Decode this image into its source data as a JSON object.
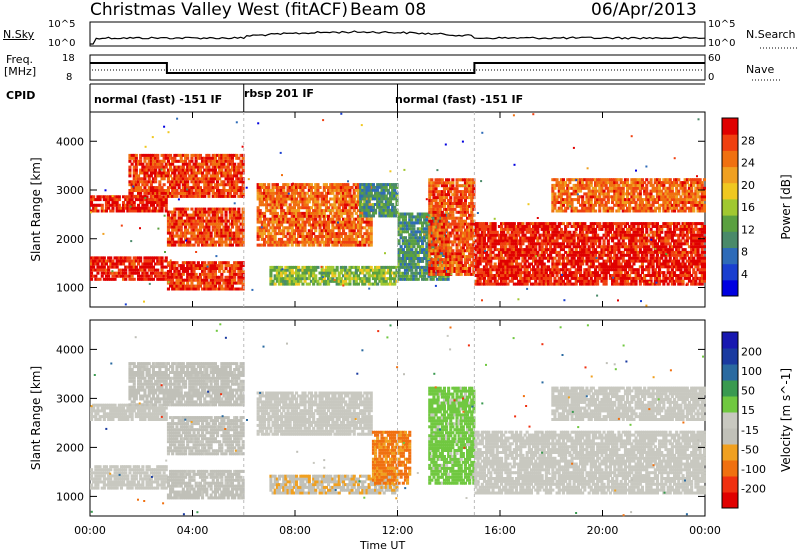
{
  "header": {
    "station": "Christmas Valley West (fitACF)",
    "beam": "Beam 08",
    "date": "06/Apr/2013"
  },
  "noise_panel": {
    "ylabel": "N.Sky",
    "left_ticks": [
      "10^5",
      "10^0"
    ],
    "right_ticks": [
      "10^5",
      "10^0"
    ],
    "right_label": "N.Search"
  },
  "freq_panel": {
    "ylabel_line1": "Freq.",
    "ylabel_line2": "[MHz]",
    "left_ticks": [
      "18",
      "8"
    ],
    "right_ticks": [
      "60",
      "0"
    ],
    "right_label": "Nave"
  },
  "cpid_panel": {
    "label": "CPID",
    "segments": [
      {
        "text": "normal (fast) -151 IF",
        "start_hour": 0,
        "end_hour": 6.0
      },
      {
        "text": "rbsp 201 IF",
        "start_hour": 6.0,
        "end_hour": 12.0
      },
      {
        "text": "normal (fast) -151 IF",
        "start_hour": 12.0,
        "end_hour": 24.0
      }
    ]
  },
  "colors": {
    "power": [
      "#0000e0",
      "#1a3fd0",
      "#2e6bb8",
      "#4a8a6a",
      "#5aa040",
      "#a0c830",
      "#f0c820",
      "#f0a020",
      "#f07010",
      "#f04010",
      "#e00000"
    ],
    "velocity": [
      "#e00000",
      "#f03010",
      "#f07010",
      "#f0a020",
      "#c0c0b8",
      "#c8c8c0",
      "#70c840",
      "#3a9a50",
      "#2a6aa0",
      "#1a3aa0",
      "#1818b0"
    ]
  },
  "chart_data": [
    {
      "type": "heatmap",
      "title": "",
      "xlabel": "Time UT",
      "ylabel": "Slant Range [km]",
      "x_ticks": [
        "00:00",
        "04:00",
        "08:00",
        "12:00",
        "16:00",
        "20:00",
        "00:00"
      ],
      "x_range_hours": [
        0,
        24
      ],
      "y_ticks": [
        "1000",
        "2000",
        "3000",
        "4000"
      ],
      "ylim": [
        600,
        4600
      ],
      "colorbar": {
        "label": "Power [dB]",
        "ticks": [
          "28",
          "24",
          "20",
          "16",
          "12",
          "8",
          "4"
        ],
        "range": [
          0,
          30
        ]
      },
      "echo_bands": [
        {
          "t0": 0.0,
          "t1": 3.0,
          "r_lo": 1200,
          "r_hi": 1700,
          "value": 28
        },
        {
          "t0": 0.0,
          "t1": 3.0,
          "r_lo": 2600,
          "r_hi": 2950,
          "value": 28
        },
        {
          "t0": 1.5,
          "t1": 6.0,
          "r_lo": 2900,
          "r_hi": 3800,
          "value": 26
        },
        {
          "t0": 3.0,
          "t1": 6.0,
          "r_lo": 1000,
          "r_hi": 1600,
          "value": 27
        },
        {
          "t0": 3.0,
          "t1": 6.0,
          "r_lo": 1900,
          "r_hi": 2700,
          "value": 26
        },
        {
          "t0": 6.5,
          "t1": 11.0,
          "r_lo": 1900,
          "r_hi": 3200,
          "value": 24
        },
        {
          "t0": 7.0,
          "t1": 12.0,
          "r_lo": 1100,
          "r_hi": 1500,
          "value": 14
        },
        {
          "t0": 10.5,
          "t1": 12.0,
          "r_lo": 2500,
          "r_hi": 3200,
          "value": 10
        },
        {
          "t0": 12.0,
          "t1": 14.0,
          "r_lo": 1200,
          "r_hi": 2600,
          "value": 10
        },
        {
          "t0": 13.2,
          "t1": 15.0,
          "r_lo": 1300,
          "r_hi": 3300,
          "value": 25
        },
        {
          "t0": 15.0,
          "t1": 24.0,
          "r_lo": 1100,
          "r_hi": 2400,
          "value": 28
        },
        {
          "t0": 18.0,
          "t1": 24.0,
          "r_lo": 2600,
          "r_hi": 3300,
          "value": 24
        }
      ]
    },
    {
      "type": "heatmap",
      "title": "",
      "xlabel": "Time UT",
      "ylabel": "Slant Range [km]",
      "x_ticks": [
        "00:00",
        "04:00",
        "08:00",
        "12:00",
        "16:00",
        "20:00",
        "00:00"
      ],
      "x_range_hours": [
        0,
        24
      ],
      "y_ticks": [
        "1000",
        "2000",
        "3000",
        "4000"
      ],
      "ylim": [
        600,
        4600
      ],
      "colorbar": {
        "label": "Velocity [m s^-1]",
        "ticks": [
          "200",
          "100",
          "50",
          "15",
          "-15",
          "-50",
          "-100",
          "-200"
        ],
        "range": [
          -250,
          250
        ]
      },
      "echo_bands": [
        {
          "t0": 0.0,
          "t1": 3.0,
          "r_lo": 1200,
          "r_hi": 1700,
          "value": 0
        },
        {
          "t0": 0.0,
          "t1": 3.0,
          "r_lo": 2600,
          "r_hi": 2950,
          "value": 0
        },
        {
          "t0": 1.5,
          "t1": 6.0,
          "r_lo": 2900,
          "r_hi": 3800,
          "value": -40
        },
        {
          "t0": 3.0,
          "t1": 6.0,
          "r_lo": 1000,
          "r_hi": 1600,
          "value": -40
        },
        {
          "t0": 3.0,
          "t1": 6.0,
          "r_lo": 1900,
          "r_hi": 2700,
          "value": -40
        },
        {
          "t0": 6.5,
          "t1": 11.0,
          "r_lo": 2300,
          "r_hi": 3200,
          "value": 0
        },
        {
          "t0": 7.0,
          "t1": 12.0,
          "r_lo": 1100,
          "r_hi": 1500,
          "value": -60
        },
        {
          "t0": 11.0,
          "t1": 12.5,
          "r_lo": 1300,
          "r_hi": 2400,
          "value": -120
        },
        {
          "t0": 13.2,
          "t1": 15.0,
          "r_lo": 1300,
          "r_hi": 3300,
          "value": 40
        },
        {
          "t0": 15.0,
          "t1": 24.0,
          "r_lo": 1100,
          "r_hi": 2400,
          "value": 0
        },
        {
          "t0": 18.0,
          "t1": 24.0,
          "r_lo": 2600,
          "r_hi": 3300,
          "value": 0
        }
      ]
    }
  ]
}
